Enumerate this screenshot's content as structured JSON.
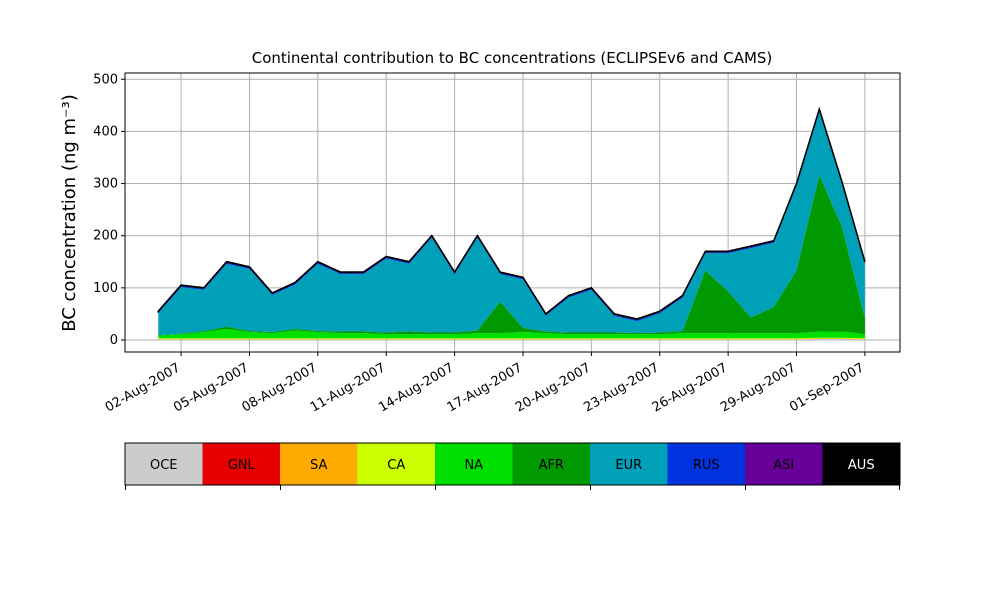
{
  "chart_data": {
    "type": "stacked-area",
    "title": "Continental contribution to BC concentrations (ECLIPSEv6 and CAMS)",
    "y_label": "BC concentration (ng m⁻³)",
    "x": [
      1,
      2,
      3,
      4,
      5,
      6,
      7,
      8,
      9,
      10,
      11,
      12,
      13,
      14,
      15,
      16,
      17,
      18,
      19,
      20,
      21,
      22,
      23,
      24,
      25,
      26,
      27,
      28,
      29,
      30,
      31,
      32
    ],
    "xlim": [
      -0.46,
      33.54
    ],
    "xticks": [
      {
        "value": 2,
        "label": "02-Aug-2007"
      },
      {
        "value": 5,
        "label": "05-Aug-2007"
      },
      {
        "value": 8,
        "label": "08-Aug-2007"
      },
      {
        "value": 11,
        "label": "11-Aug-2007"
      },
      {
        "value": 14,
        "label": "14-Aug-2007"
      },
      {
        "value": 17,
        "label": "17-Aug-2007"
      },
      {
        "value": 20,
        "label": "20-Aug-2007"
      },
      {
        "value": 23,
        "label": "23-Aug-2007"
      },
      {
        "value": 26,
        "label": "26-Aug-2007"
      },
      {
        "value": 29,
        "label": "29-Aug-2007"
      },
      {
        "value": 32,
        "label": "01-Sep-2007"
      }
    ],
    "ylim": [
      -23,
      512
    ],
    "yticks": [
      0,
      100,
      200,
      300,
      400,
      500
    ],
    "grid": true,
    "series": [
      {
        "name": "OCE",
        "color": "#cccccc",
        "values": [
          1,
          1,
          1,
          1,
          1,
          1,
          1,
          1,
          1,
          1,
          1,
          1,
          1,
          1,
          1,
          1,
          1,
          1,
          1,
          1,
          1,
          1,
          1,
          1,
          1,
          1,
          1,
          1,
          1,
          2,
          2,
          1
        ]
      },
      {
        "name": "GNL",
        "color": "#e60000",
        "values": [
          0.3,
          0.3,
          0.3,
          0.3,
          0.3,
          0.3,
          0.3,
          0.3,
          0.3,
          0.3,
          0.3,
          0.3,
          0.3,
          0.3,
          0.3,
          0.3,
          0.3,
          0.3,
          0.3,
          0.3,
          0.3,
          0.3,
          0.3,
          0.3,
          0.3,
          0.3,
          0.3,
          0.3,
          0.3,
          0.3,
          0.3,
          0.3
        ]
      },
      {
        "name": "SA",
        "color": "#ffaa00",
        "values": [
          0.5,
          0.5,
          0.5,
          0.5,
          0.5,
          0.5,
          0.5,
          0.5,
          0.5,
          0.5,
          0.5,
          0.5,
          0.5,
          0.5,
          0.5,
          0.5,
          0.5,
          0.5,
          0.5,
          0.5,
          0.5,
          0.5,
          0.5,
          0.5,
          0.5,
          0.5,
          0.5,
          0.5,
          0.5,
          0.5,
          0.5,
          0.5
        ]
      },
      {
        "name": "CA",
        "color": "#ccff00",
        "values": [
          1.5,
          1.5,
          1.5,
          1.5,
          1.5,
          1.5,
          1.5,
          1.5,
          1.5,
          1.5,
          1.5,
          1.5,
          1.5,
          1.5,
          1.5,
          1.5,
          1.5,
          1.5,
          1.5,
          1.5,
          1.5,
          1.5,
          1.5,
          1.5,
          1.5,
          1.5,
          1.5,
          1.5,
          1.5,
          1.5,
          1.5,
          1.5
        ]
      },
      {
        "name": "NA",
        "color": "#00e000",
        "values": [
          5,
          8,
          12,
          18,
          12,
          10,
          15,
          12,
          10,
          10,
          8,
          8,
          8,
          8,
          10,
          10,
          12,
          10,
          8,
          8,
          8,
          8,
          8,
          10,
          10,
          10,
          10,
          10,
          10,
          12,
          12,
          8
        ]
      },
      {
        "name": "AFR",
        "color": "#009900",
        "values": [
          1,
          1,
          2,
          4,
          2,
          2,
          3,
          2,
          3,
          3,
          3,
          5,
          3,
          3,
          5,
          60,
          8,
          3,
          3,
          3,
          3,
          2,
          3,
          4,
          120,
          80,
          30,
          50,
          120,
          300,
          200,
          30
        ]
      },
      {
        "name": "EUR",
        "color": "#00a0b8",
        "values": [
          42,
          89,
          79,
          121,
          119,
          71,
          85,
          129,
          110,
          110,
          142,
          130,
          182,
          112,
          178,
          53,
          93,
          30,
          67,
          82,
          32,
          23,
          37,
          64,
          33,
          73,
          133,
          123,
          163,
          121,
          81,
          105
        ]
      },
      {
        "name": "RUS",
        "color": "#0033dd",
        "values": [
          2,
          2,
          2,
          2,
          2,
          2,
          2,
          2,
          2,
          2,
          2,
          2,
          2,
          2,
          2,
          2,
          2,
          2,
          2,
          2,
          2,
          2,
          2,
          2,
          2,
          2,
          2,
          2,
          2,
          3,
          3,
          2
        ]
      },
      {
        "name": "ASI",
        "color": "#660099",
        "values": [
          1.5,
          1.5,
          1.5,
          1.5,
          1.5,
          1.5,
          1.5,
          1.5,
          1.5,
          1.5,
          1.5,
          1.5,
          1.5,
          1.5,
          1.5,
          1.5,
          1.5,
          1.5,
          1.5,
          1.5,
          1.5,
          1.5,
          1.5,
          1.5,
          1.5,
          1.5,
          1.5,
          1.5,
          1.5,
          2,
          2,
          1.5
        ]
      },
      {
        "name": "AUS",
        "color": "#000000",
        "values": [
          0.5,
          0.5,
          0.5,
          0.5,
          0.5,
          0.5,
          0.5,
          0.5,
          0.5,
          0.5,
          0.5,
          0.5,
          0.5,
          0.5,
          0.5,
          0.5,
          0.5,
          0.5,
          0.5,
          0.5,
          0.5,
          0.5,
          0.5,
          0.5,
          0.5,
          0.5,
          0.5,
          0.5,
          0.5,
          0.5,
          0.5,
          0.5
        ]
      }
    ]
  }
}
